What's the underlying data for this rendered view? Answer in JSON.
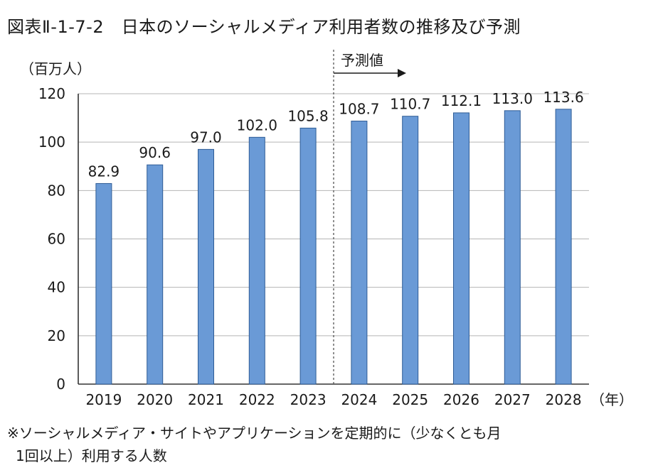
{
  "title": "図表Ⅱ-1-7-2　日本のソーシャルメディア利用者数の推移及び予測",
  "notes": [
    "※ソーシャルメディア・サイトやアプリケーションを定期的に（少なくとも月",
    "1回以上）利用する人数"
  ],
  "chart_data": {
    "type": "bar",
    "title": "日本のソーシャルメディア利用者数の推移及び予測",
    "ylabel": "（百万人）",
    "xlabel": "（年）",
    "ylim": [
      0,
      120
    ],
    "yticks": [
      0,
      20,
      40,
      60,
      80,
      100,
      120
    ],
    "grid": true,
    "categories": [
      "2019",
      "2020",
      "2021",
      "2022",
      "2023",
      "2024",
      "2025",
      "2026",
      "2027",
      "2028"
    ],
    "values": [
      82.9,
      90.6,
      97.0,
      102.0,
      105.8,
      108.7,
      110.7,
      112.1,
      113.0,
      113.6
    ],
    "value_labels": [
      "82.9",
      "90.6",
      "97.0",
      "102.0",
      "105.8",
      "108.7",
      "110.7",
      "112.1",
      "113.0",
      "113.6"
    ],
    "forecast_label": "予測値",
    "forecast_start": "2024",
    "bar_color": "#6a9ad6",
    "bar_edge_color": "#2f5d96"
  }
}
